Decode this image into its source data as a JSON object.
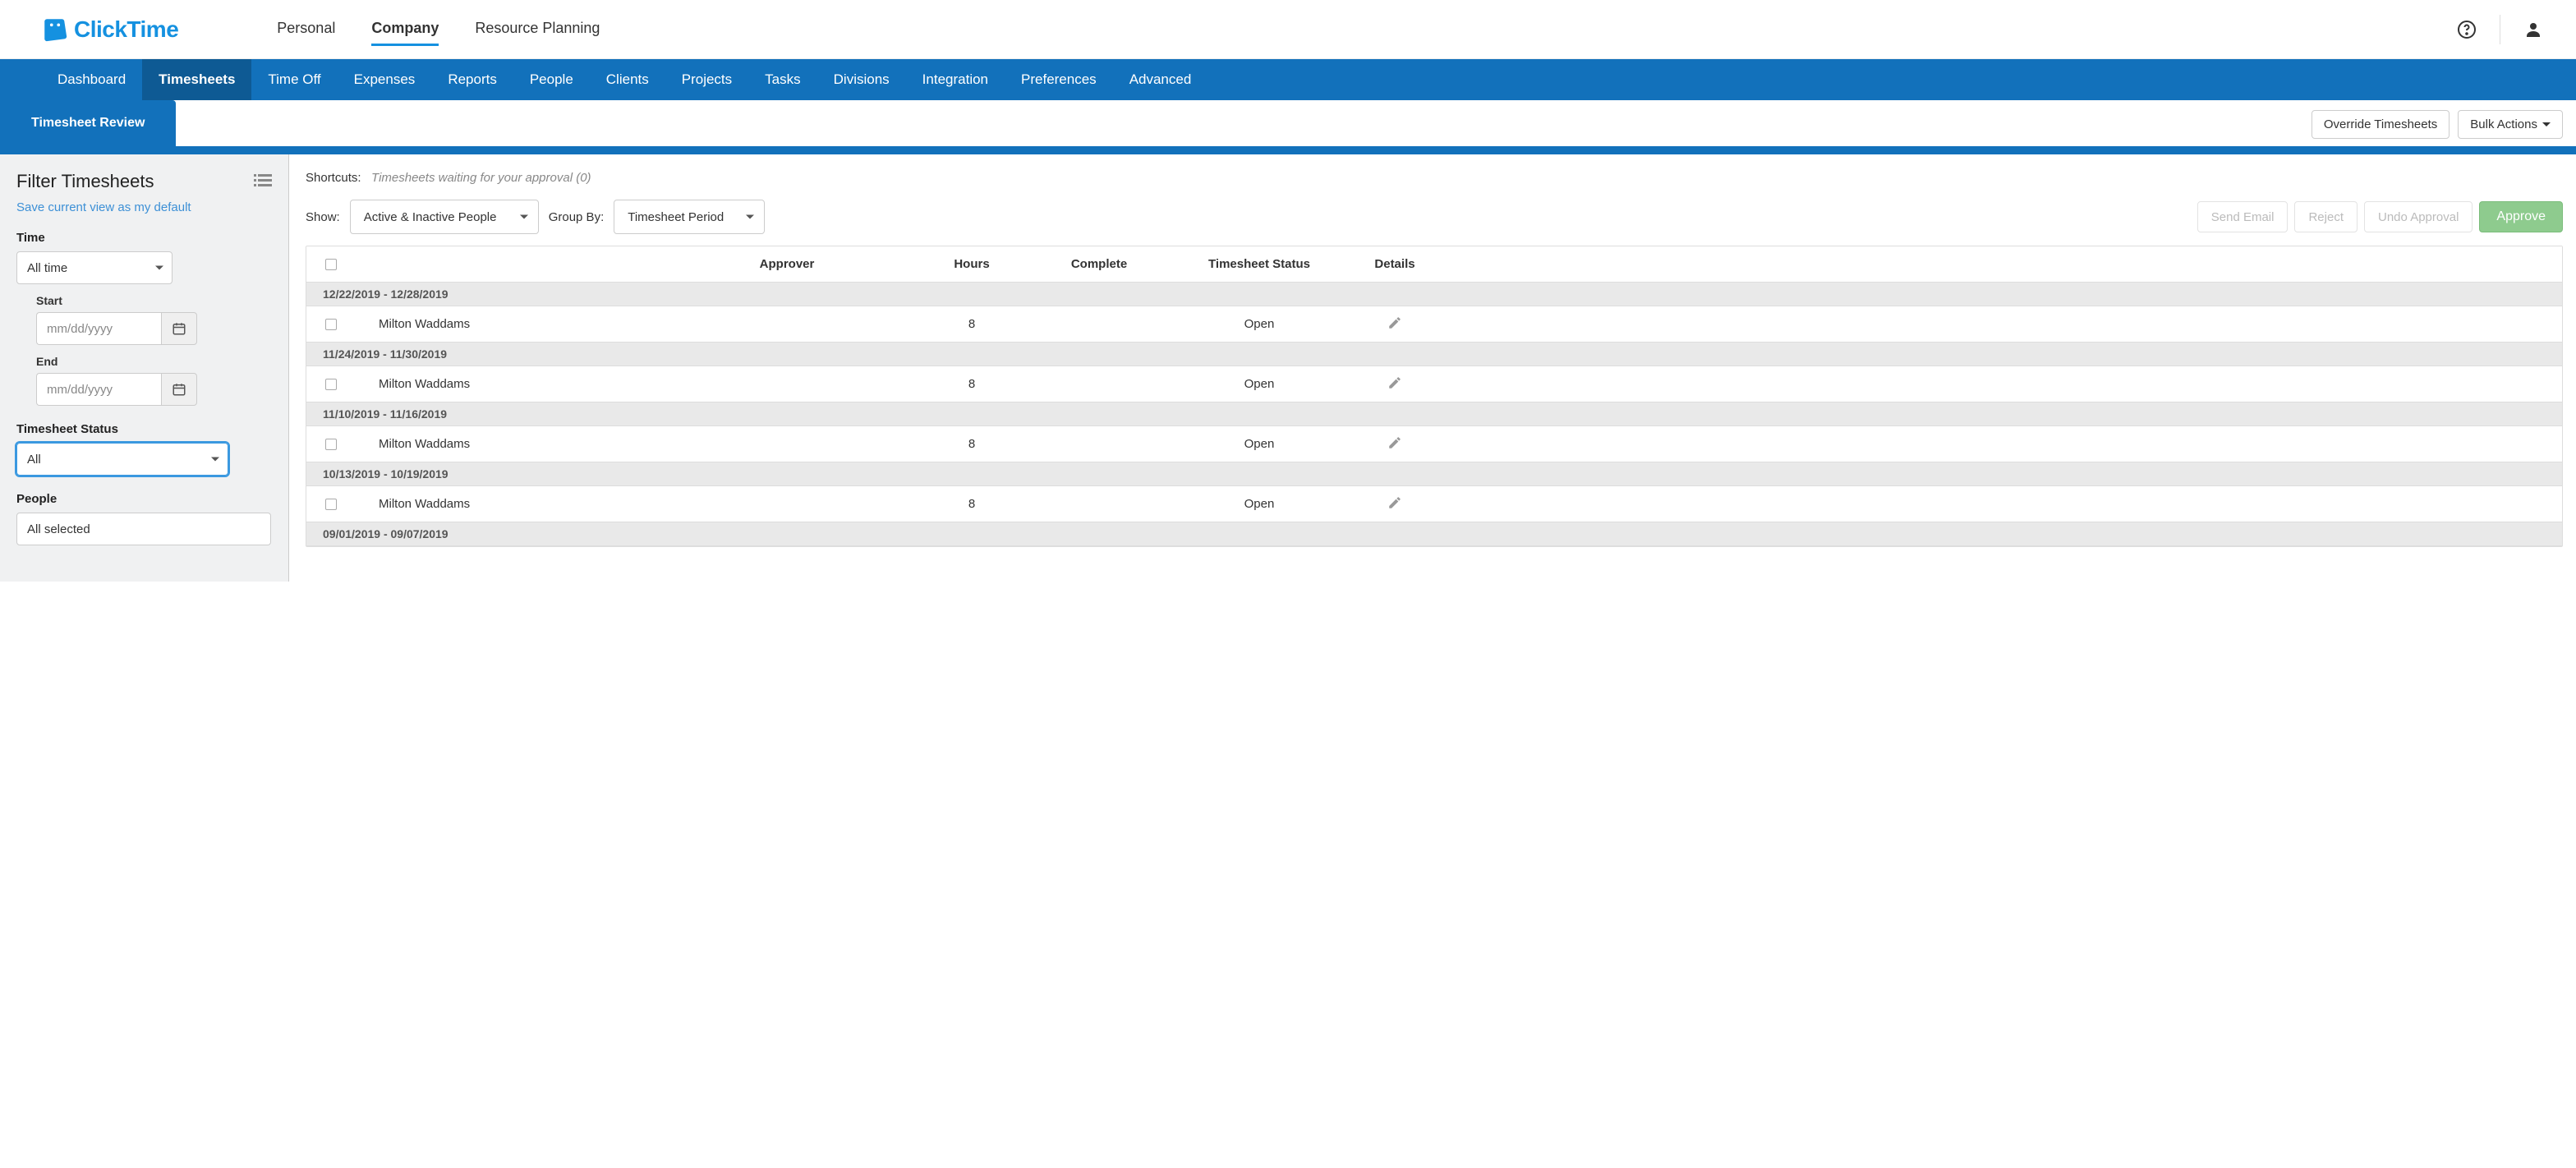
{
  "brand": {
    "name": "ClickTime"
  },
  "topTabs": [
    {
      "label": "Personal",
      "active": false
    },
    {
      "label": "Company",
      "active": true
    },
    {
      "label": "Resource Planning",
      "active": false
    }
  ],
  "blueNav": [
    {
      "label": "Dashboard",
      "active": false
    },
    {
      "label": "Timesheets",
      "active": true
    },
    {
      "label": "Time Off",
      "active": false
    },
    {
      "label": "Expenses",
      "active": false
    },
    {
      "label": "Reports",
      "active": false
    },
    {
      "label": "People",
      "active": false
    },
    {
      "label": "Clients",
      "active": false
    },
    {
      "label": "Projects",
      "active": false
    },
    {
      "label": "Tasks",
      "active": false
    },
    {
      "label": "Divisions",
      "active": false
    },
    {
      "label": "Integration",
      "active": false
    },
    {
      "label": "Preferences",
      "active": false
    },
    {
      "label": "Advanced",
      "active": false
    }
  ],
  "subTab": {
    "label": "Timesheet Review"
  },
  "subActions": {
    "override": "Override Timesheets",
    "bulk": "Bulk Actions"
  },
  "sidebar": {
    "title": "Filter Timesheets",
    "saveLink": "Save current view as my default",
    "timeLabel": "Time",
    "timeSelect": "All time",
    "startLabel": "Start",
    "endLabel": "End",
    "datePlaceholder": "mm/dd/yyyy",
    "statusLabel": "Timesheet Status",
    "statusSelect": "All",
    "peopleLabel": "People",
    "peopleSelect": "All selected"
  },
  "main": {
    "shortcutsLabel": "Shortcuts:",
    "shortcutsText": "Timesheets waiting for your approval (0)",
    "showLabel": "Show:",
    "showSelect": "Active & Inactive People",
    "groupByLabel": "Group By:",
    "groupBySelect": "Timesheet Period",
    "buttons": {
      "sendEmail": "Send Email",
      "reject": "Reject",
      "undo": "Undo Approval",
      "approve": "Approve"
    },
    "columns": {
      "approver": "Approver",
      "hours": "Hours",
      "complete": "Complete",
      "status": "Timesheet Status",
      "details": "Details"
    },
    "groups": [
      {
        "period": "12/22/2019 - 12/28/2019",
        "rows": [
          {
            "name": "Milton Waddams",
            "hours": "8",
            "status": "Open"
          }
        ]
      },
      {
        "period": "11/24/2019 - 11/30/2019",
        "rows": [
          {
            "name": "Milton Waddams",
            "hours": "8",
            "status": "Open"
          }
        ]
      },
      {
        "period": "11/10/2019 - 11/16/2019",
        "rows": [
          {
            "name": "Milton Waddams",
            "hours": "8",
            "status": "Open"
          }
        ]
      },
      {
        "period": "10/13/2019 - 10/19/2019",
        "rows": [
          {
            "name": "Milton Waddams",
            "hours": "8",
            "status": "Open"
          }
        ]
      },
      {
        "period": "09/01/2019 - 09/07/2019",
        "rows": []
      }
    ]
  },
  "colors": {
    "brandBlue": "#1591e0",
    "navBlue": "#1271bb",
    "navBlueActive": "#0e5a94",
    "link": "#3d90d6",
    "approveBg": "#8ecb8e",
    "sidebarBg": "#f0f1f2",
    "groupBg": "#e9e9e9",
    "border": "#dddddd",
    "textMuted": "#888888"
  }
}
